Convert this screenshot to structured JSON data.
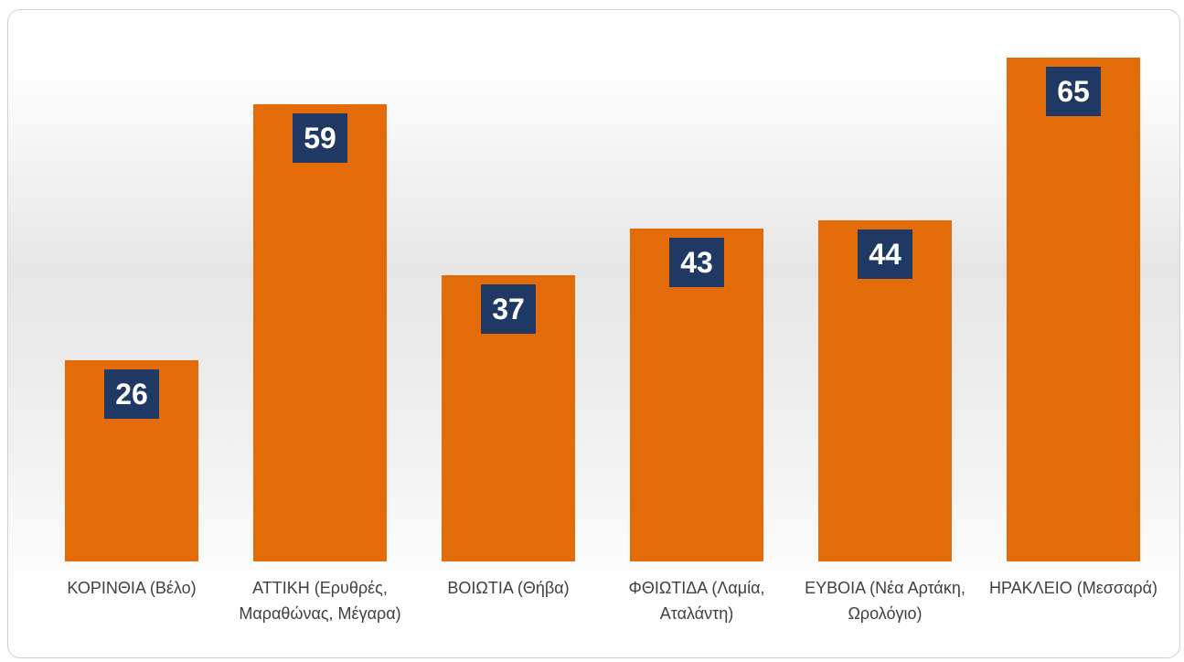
{
  "chart_data": {
    "type": "bar",
    "categories": [
      "ΚΟΡΙΝΘΙΑ (Βέλο)",
      "ΑΤΤΙΚΗ (Ερυθρές, Μαραθώνας, Μέγαρα)",
      "ΒΟΙΩΤΙΑ (Θήβα)",
      "ΦΘΙΩΤΙΔΑ (Λαμία, Αταλάντη)",
      "ΕΥΒΟΙΑ (Νέα Αρτάκη, Ωρολόγιο)",
      "ΗΡΑΚΛΕΙΟ (Μεσσαρά)"
    ],
    "values": [
      26,
      59,
      37,
      43,
      44,
      65
    ],
    "color": "#e36c09",
    "label_color": "#1f3864",
    "ylim": [
      0,
      70
    ]
  }
}
